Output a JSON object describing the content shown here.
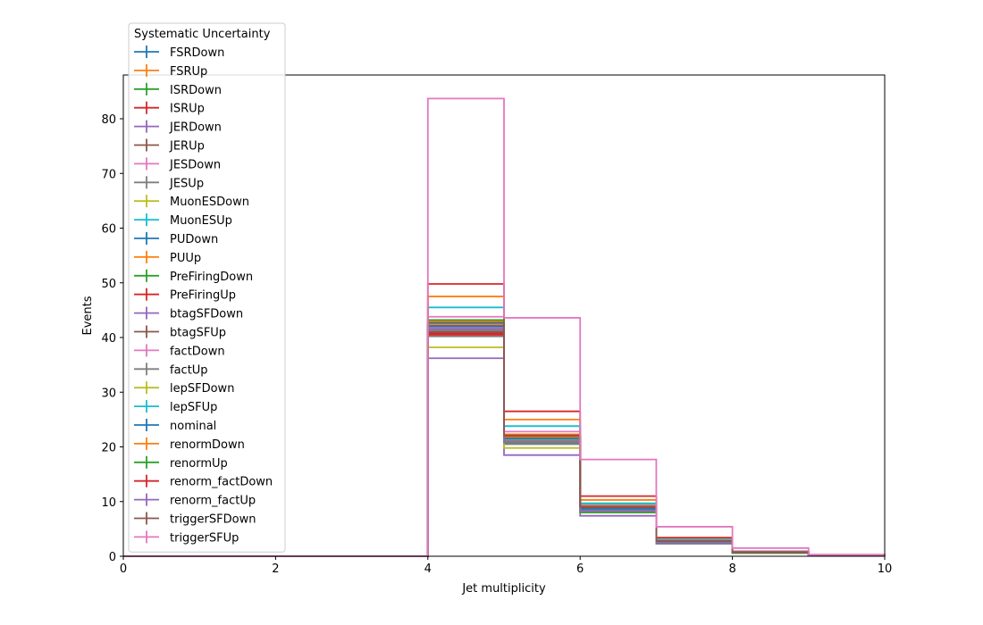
{
  "chart_data": {
    "type": "step",
    "xlabel": "Jet multiplicity",
    "ylabel": "Events",
    "xlim": [
      0,
      10
    ],
    "ylim": [
      0,
      88
    ],
    "xticks": [
      0,
      2,
      4,
      6,
      8,
      10
    ],
    "yticks": [
      0,
      10,
      20,
      30,
      40,
      50,
      60,
      70,
      80
    ],
    "bin_edges": [
      0,
      1,
      2,
      3,
      4,
      5,
      6,
      7,
      8,
      9,
      10
    ],
    "grid": false,
    "legend": {
      "title": "Systematic Uncertainty",
      "placement": "top-left"
    },
    "series": [
      {
        "name": "FSRDown",
        "color": "#1f77b4",
        "values": [
          0,
          0,
          0,
          0,
          42.0,
          21.2,
          8.6,
          2.6,
          0.7,
          0.15
        ]
      },
      {
        "name": "FSRUp",
        "color": "#ff7f0e",
        "values": [
          0,
          0,
          0,
          0,
          47.5,
          25.0,
          10.3,
          3.1,
          0.8,
          0.18
        ]
      },
      {
        "name": "ISRDown",
        "color": "#2ca02c",
        "values": [
          0,
          0,
          0,
          0,
          42.5,
          21.7,
          8.8,
          2.7,
          0.7,
          0.15
        ]
      },
      {
        "name": "ISRUp",
        "color": "#d62728",
        "values": [
          0,
          0,
          0,
          0,
          40.8,
          21.0,
          8.5,
          2.6,
          0.7,
          0.15
        ]
      },
      {
        "name": "JERDown",
        "color": "#9467bd",
        "values": [
          0,
          0,
          0,
          0,
          41.5,
          21.3,
          8.7,
          2.6,
          0.7,
          0.15
        ]
      },
      {
        "name": "JERUp",
        "color": "#8c564b",
        "values": [
          0,
          0,
          0,
          0,
          42.3,
          21.5,
          8.8,
          2.7,
          0.7,
          0.15
        ]
      },
      {
        "name": "JESDown",
        "color": "#e377c2",
        "values": [
          0,
          0,
          0,
          0,
          43.8,
          22.8,
          9.3,
          2.9,
          0.8,
          0.16
        ]
      },
      {
        "name": "JESUp",
        "color": "#7f7f7f",
        "values": [
          0,
          0,
          0,
          0,
          40.2,
          20.5,
          8.2,
          2.5,
          0.7,
          0.14
        ]
      },
      {
        "name": "MuonESDown",
        "color": "#bcbd22",
        "values": [
          0,
          0,
          0,
          0,
          42.0,
          21.4,
          8.7,
          2.6,
          0.7,
          0.15
        ]
      },
      {
        "name": "MuonESUp",
        "color": "#17becf",
        "values": [
          0,
          0,
          0,
          0,
          45.5,
          23.8,
          9.7,
          3.0,
          0.8,
          0.17
        ]
      },
      {
        "name": "PUDown",
        "color": "#1f77b4",
        "values": [
          0,
          0,
          0,
          0,
          42.2,
          21.6,
          8.8,
          2.7,
          0.7,
          0.15
        ]
      },
      {
        "name": "PUUp",
        "color": "#ff7f0e",
        "values": [
          0,
          0,
          0,
          0,
          42.4,
          21.8,
          8.9,
          2.7,
          0.7,
          0.15
        ]
      },
      {
        "name": "PreFiringDown",
        "color": "#2ca02c",
        "values": [
          0,
          0,
          0,
          0,
          42.9,
          22.0,
          9.0,
          2.7,
          0.7,
          0.15
        ]
      },
      {
        "name": "PreFiringUp",
        "color": "#d62728",
        "values": [
          0,
          0,
          0,
          0,
          49.8,
          26.5,
          11.0,
          3.4,
          0.9,
          0.19
        ]
      },
      {
        "name": "btagSFDown",
        "color": "#9467bd",
        "values": [
          0,
          0,
          0,
          0,
          36.2,
          18.5,
          7.4,
          2.3,
          0.6,
          0.13
        ]
      },
      {
        "name": "btagSFUp",
        "color": "#8c564b",
        "values": [
          0,
          0,
          0,
          0,
          41.0,
          21.0,
          8.5,
          2.6,
          0.7,
          0.15
        ]
      },
      {
        "name": "factDown",
        "color": "#e377c2",
        "values": [
          0,
          0,
          0,
          0,
          42.8,
          22.3,
          9.1,
          2.8,
          0.7,
          0.16
        ]
      },
      {
        "name": "factUp",
        "color": "#7f7f7f",
        "values": [
          0,
          0,
          0,
          0,
          41.3,
          21.1,
          8.6,
          2.6,
          0.7,
          0.15
        ]
      },
      {
        "name": "lepSFDown",
        "color": "#bcbd22",
        "values": [
          0,
          0,
          0,
          0,
          38.2,
          19.8,
          8.0,
          2.5,
          0.6,
          0.14
        ]
      },
      {
        "name": "lepSFUp",
        "color": "#17becf",
        "values": [
          0,
          0,
          0,
          0,
          42.6,
          23.8,
          9.6,
          3.0,
          0.8,
          0.16
        ]
      },
      {
        "name": "nominal",
        "color": "#1f77b4",
        "values": [
          0,
          0,
          0,
          0,
          42.1,
          21.5,
          8.7,
          2.6,
          0.7,
          0.15
        ]
      },
      {
        "name": "renormDown",
        "color": "#ff7f0e",
        "values": [
          0,
          0,
          0,
          0,
          43.0,
          22.3,
          9.2,
          2.8,
          0.7,
          0.16
        ]
      },
      {
        "name": "renormUp",
        "color": "#2ca02c",
        "values": [
          0,
          0,
          0,
          0,
          43.2,
          20.8,
          8.0,
          2.4,
          0.6,
          0.14
        ]
      },
      {
        "name": "renorm_factDown",
        "color": "#d62728",
        "values": [
          0,
          0,
          0,
          0,
          40.5,
          22.1,
          9.0,
          2.7,
          0.7,
          0.15
        ]
      },
      {
        "name": "renorm_factUp",
        "color": "#9467bd",
        "values": [
          0,
          0,
          0,
          0,
          41.8,
          20.9,
          8.3,
          2.5,
          0.7,
          0.14
        ]
      },
      {
        "name": "triggerSFDown",
        "color": "#8c564b",
        "values": [
          0,
          0,
          0,
          0,
          42.7,
          22.0,
          9.1,
          2.8,
          0.7,
          0.15
        ]
      },
      {
        "name": "triggerSFUp",
        "color": "#e377c2",
        "values": [
          0,
          0,
          0,
          0,
          83.7,
          43.6,
          17.7,
          5.4,
          1.5,
          0.3
        ]
      }
    ]
  }
}
